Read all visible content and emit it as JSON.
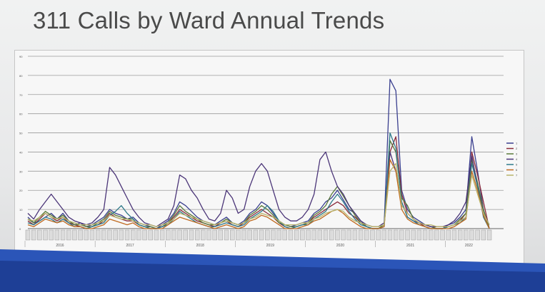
{
  "slide": {
    "title": "311 Calls by Ward Annual Trends"
  },
  "chart_data": {
    "type": "line",
    "title": "",
    "xlabel": "",
    "ylabel": "",
    "ylim": [
      0,
      90
    ],
    "y_ticks": [
      0,
      10,
      20,
      30,
      40,
      50,
      60,
      70,
      80,
      90
    ],
    "grid": true,
    "legend_position": "right",
    "year_labels": [
      "2016",
      "2017",
      "2018",
      "2019",
      "2020",
      "2021",
      "2022"
    ],
    "months_per_year": 12,
    "x": [
      "2016-01",
      "2016-02",
      "2016-03",
      "2016-04",
      "2016-05",
      "2016-06",
      "2016-07",
      "2016-08",
      "2016-09",
      "2016-10",
      "2016-11",
      "2016-12",
      "2017-01",
      "2017-02",
      "2017-03",
      "2017-04",
      "2017-05",
      "2017-06",
      "2017-07",
      "2017-08",
      "2017-09",
      "2017-10",
      "2017-11",
      "2017-12",
      "2018-01",
      "2018-02",
      "2018-03",
      "2018-04",
      "2018-05",
      "2018-06",
      "2018-07",
      "2018-08",
      "2018-09",
      "2018-10",
      "2018-11",
      "2018-12",
      "2019-01",
      "2019-02",
      "2019-03",
      "2019-04",
      "2019-05",
      "2019-06",
      "2019-07",
      "2019-08",
      "2019-09",
      "2019-10",
      "2019-11",
      "2019-12",
      "2020-01",
      "2020-02",
      "2020-03",
      "2020-04",
      "2020-05",
      "2020-06",
      "2020-07",
      "2020-08",
      "2020-09",
      "2020-10",
      "2020-11",
      "2020-12",
      "2021-01",
      "2021-02",
      "2021-03",
      "2021-04",
      "2021-05",
      "2021-06",
      "2021-07",
      "2021-08",
      "2021-09",
      "2021-10",
      "2021-11",
      "2021-12",
      "2022-01",
      "2022-02",
      "2022-03",
      "2022-04",
      "2022-05",
      "2022-06",
      "2022-07",
      "2022-08"
    ],
    "series": [
      {
        "name": "1",
        "color": "#3a3f8f",
        "values": [
          6,
          3,
          4,
          6,
          8,
          5,
          8,
          4,
          2,
          3,
          1,
          2,
          4,
          6,
          10,
          8,
          7,
          5,
          6,
          3,
          2,
          1,
          0,
          2,
          4,
          8,
          14,
          12,
          9,
          6,
          4,
          3,
          2,
          4,
          6,
          3,
          2,
          4,
          8,
          10,
          14,
          12,
          8,
          4,
          2,
          1,
          2,
          3,
          4,
          8,
          10,
          14,
          16,
          20,
          15,
          10,
          8,
          4,
          1,
          0,
          0,
          2,
          78,
          72,
          20,
          10,
          6,
          4,
          2,
          1,
          0,
          0,
          2,
          3,
          6,
          10,
          48,
          30,
          10,
          0
        ]
      },
      {
        "name": "2",
        "color": "#8a2a3a",
        "values": [
          4,
          2,
          5,
          8,
          6,
          4,
          6,
          3,
          2,
          1,
          0,
          1,
          2,
          4,
          8,
          6,
          5,
          4,
          4,
          2,
          1,
          0,
          0,
          1,
          3,
          6,
          10,
          8,
          6,
          4,
          3,
          2,
          1,
          3,
          4,
          2,
          1,
          3,
          6,
          8,
          10,
          8,
          6,
          3,
          1,
          0,
          1,
          2,
          3,
          6,
          8,
          10,
          12,
          14,
          12,
          8,
          6,
          3,
          1,
          0,
          0,
          1,
          40,
          48,
          18,
          8,
          5,
          3,
          1,
          0,
          0,
          0,
          1,
          2,
          4,
          8,
          40,
          28,
          14,
          0
        ]
      },
      {
        "name": "3",
        "color": "#5a7a3a",
        "values": [
          5,
          3,
          6,
          9,
          7,
          5,
          7,
          4,
          2,
          2,
          1,
          1,
          3,
          5,
          9,
          7,
          6,
          5,
          5,
          2,
          1,
          1,
          0,
          1,
          3,
          7,
          12,
          9,
          7,
          5,
          3,
          2,
          2,
          3,
          5,
          3,
          2,
          3,
          7,
          9,
          12,
          10,
          7,
          3,
          2,
          1,
          1,
          2,
          3,
          7,
          9,
          12,
          18,
          22,
          17,
          12,
          7,
          3,
          1,
          0,
          0,
          2,
          46,
          40,
          16,
          12,
          5,
          3,
          2,
          1,
          0,
          0,
          1,
          2,
          5,
          8,
          36,
          24,
          10,
          0
        ]
      },
      {
        "name": "4",
        "color": "#4b3578",
        "values": [
          8,
          5,
          10,
          14,
          18,
          14,
          10,
          6,
          4,
          3,
          2,
          3,
          6,
          10,
          32,
          28,
          22,
          16,
          10,
          6,
          3,
          2,
          1,
          3,
          5,
          12,
          28,
          26,
          20,
          16,
          10,
          5,
          4,
          8,
          20,
          16,
          8,
          10,
          22,
          30,
          34,
          30,
          20,
          10,
          6,
          4,
          4,
          6,
          10,
          18,
          36,
          40,
          30,
          22,
          18,
          12,
          8,
          4,
          2,
          1,
          1,
          3,
          40,
          30,
          14,
          6,
          4,
          3,
          2,
          1,
          1,
          1,
          2,
          4,
          8,
          14,
          38,
          22,
          8,
          2
        ]
      },
      {
        "name": "5",
        "color": "#2f7a8a",
        "values": [
          3,
          2,
          4,
          6,
          5,
          3,
          5,
          3,
          1,
          1,
          0,
          1,
          2,
          3,
          7,
          9,
          12,
          8,
          5,
          2,
          1,
          0,
          0,
          1,
          2,
          5,
          9,
          7,
          5,
          3,
          2,
          1,
          1,
          2,
          3,
          2,
          1,
          2,
          5,
          7,
          9,
          12,
          9,
          4,
          1,
          0,
          1,
          2,
          2,
          5,
          7,
          9,
          14,
          18,
          14,
          9,
          5,
          2,
          1,
          0,
          0,
          1,
          50,
          42,
          14,
          6,
          4,
          2,
          1,
          0,
          0,
          0,
          1,
          2,
          3,
          6,
          34,
          22,
          6,
          0
        ]
      },
      {
        "name": "6",
        "color": "#c06a20",
        "values": [
          2,
          1,
          3,
          5,
          4,
          3,
          4,
          2,
          1,
          1,
          0,
          0,
          1,
          2,
          5,
          4,
          3,
          2,
          3,
          1,
          0,
          0,
          0,
          0,
          2,
          4,
          6,
          5,
          4,
          3,
          2,
          1,
          0,
          1,
          2,
          1,
          0,
          1,
          4,
          5,
          7,
          6,
          4,
          2,
          0,
          0,
          0,
          1,
          2,
          4,
          5,
          7,
          9,
          10,
          8,
          5,
          3,
          1,
          0,
          0,
          0,
          1,
          36,
          30,
          10,
          5,
          3,
          2,
          1,
          0,
          0,
          0,
          0,
          1,
          3,
          5,
          30,
          20,
          7,
          0
        ]
      },
      {
        "name": "7",
        "color": "#b9b46a",
        "values": [
          5,
          4,
          6,
          8,
          6,
          5,
          6,
          4,
          3,
          2,
          2,
          2,
          3,
          4,
          7,
          6,
          5,
          5,
          4,
          3,
          2,
          2,
          1,
          2,
          3,
          5,
          8,
          7,
          6,
          5,
          4,
          3,
          2,
          3,
          4,
          3,
          2,
          3,
          5,
          6,
          8,
          7,
          6,
          4,
          2,
          2,
          2,
          3,
          3,
          5,
          6,
          8,
          9,
          10,
          9,
          6,
          4,
          3,
          2,
          1,
          1,
          2,
          30,
          34,
          12,
          8,
          5,
          3,
          2,
          2,
          1,
          1,
          1,
          2,
          4,
          6,
          28,
          18,
          8,
          2
        ]
      }
    ]
  }
}
